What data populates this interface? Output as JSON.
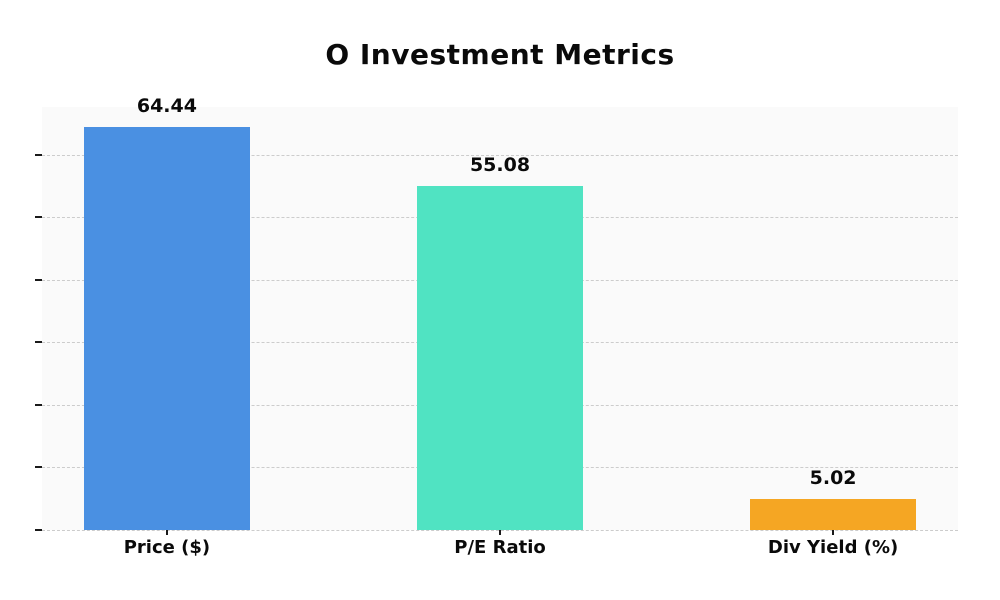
{
  "chart_data": {
    "type": "bar",
    "title": "O Investment Metrics",
    "categories": [
      "Price ($)",
      "P/E Ratio",
      "Div Yield (%)"
    ],
    "values": [
      64.44,
      55.08,
      5.02
    ],
    "value_labels": [
      "64.44",
      "55.08",
      "5.02"
    ],
    "bar_colors": [
      "#4a90e2",
      "#50e3c2",
      "#f5a623"
    ],
    "xlabel": "",
    "ylabel": "",
    "ylim": [
      0,
      67.66
    ],
    "yticks": [
      0,
      10,
      20,
      30,
      40,
      50,
      60
    ],
    "ytick_labels": [
      "",
      "",
      "",
      "",
      "",
      "",
      ""
    ],
    "grid": "horizontal-dashed",
    "legend_position": "none",
    "plot_background": "#fafafa",
    "grid_color": "#cccccc",
    "title_color": "#0a0a0a",
    "label_color": "#0a0a0a"
  }
}
